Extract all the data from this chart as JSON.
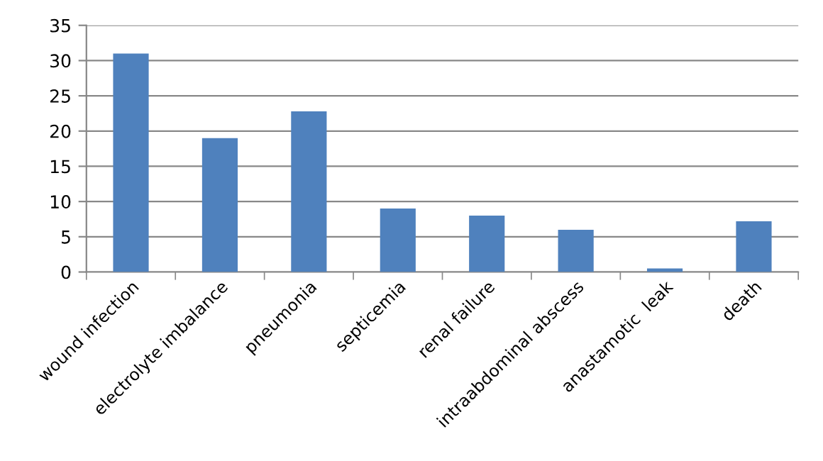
{
  "chart_data": {
    "type": "bar",
    "categories": [
      "wound infection",
      "electrolyte imbalance",
      "pneumonia",
      "septicemia",
      "renal failure",
      "intraabdominal abscess",
      "anastamotic  leak",
      "death"
    ],
    "values": [
      31,
      19,
      22.8,
      9,
      8,
      6,
      0.5,
      7.2
    ],
    "color": "#4f81bd",
    "ylim": [
      0,
      35
    ],
    "yticks": [
      0,
      5,
      10,
      15,
      20,
      25,
      30,
      35
    ],
    "grid": "y",
    "legend": false
  }
}
